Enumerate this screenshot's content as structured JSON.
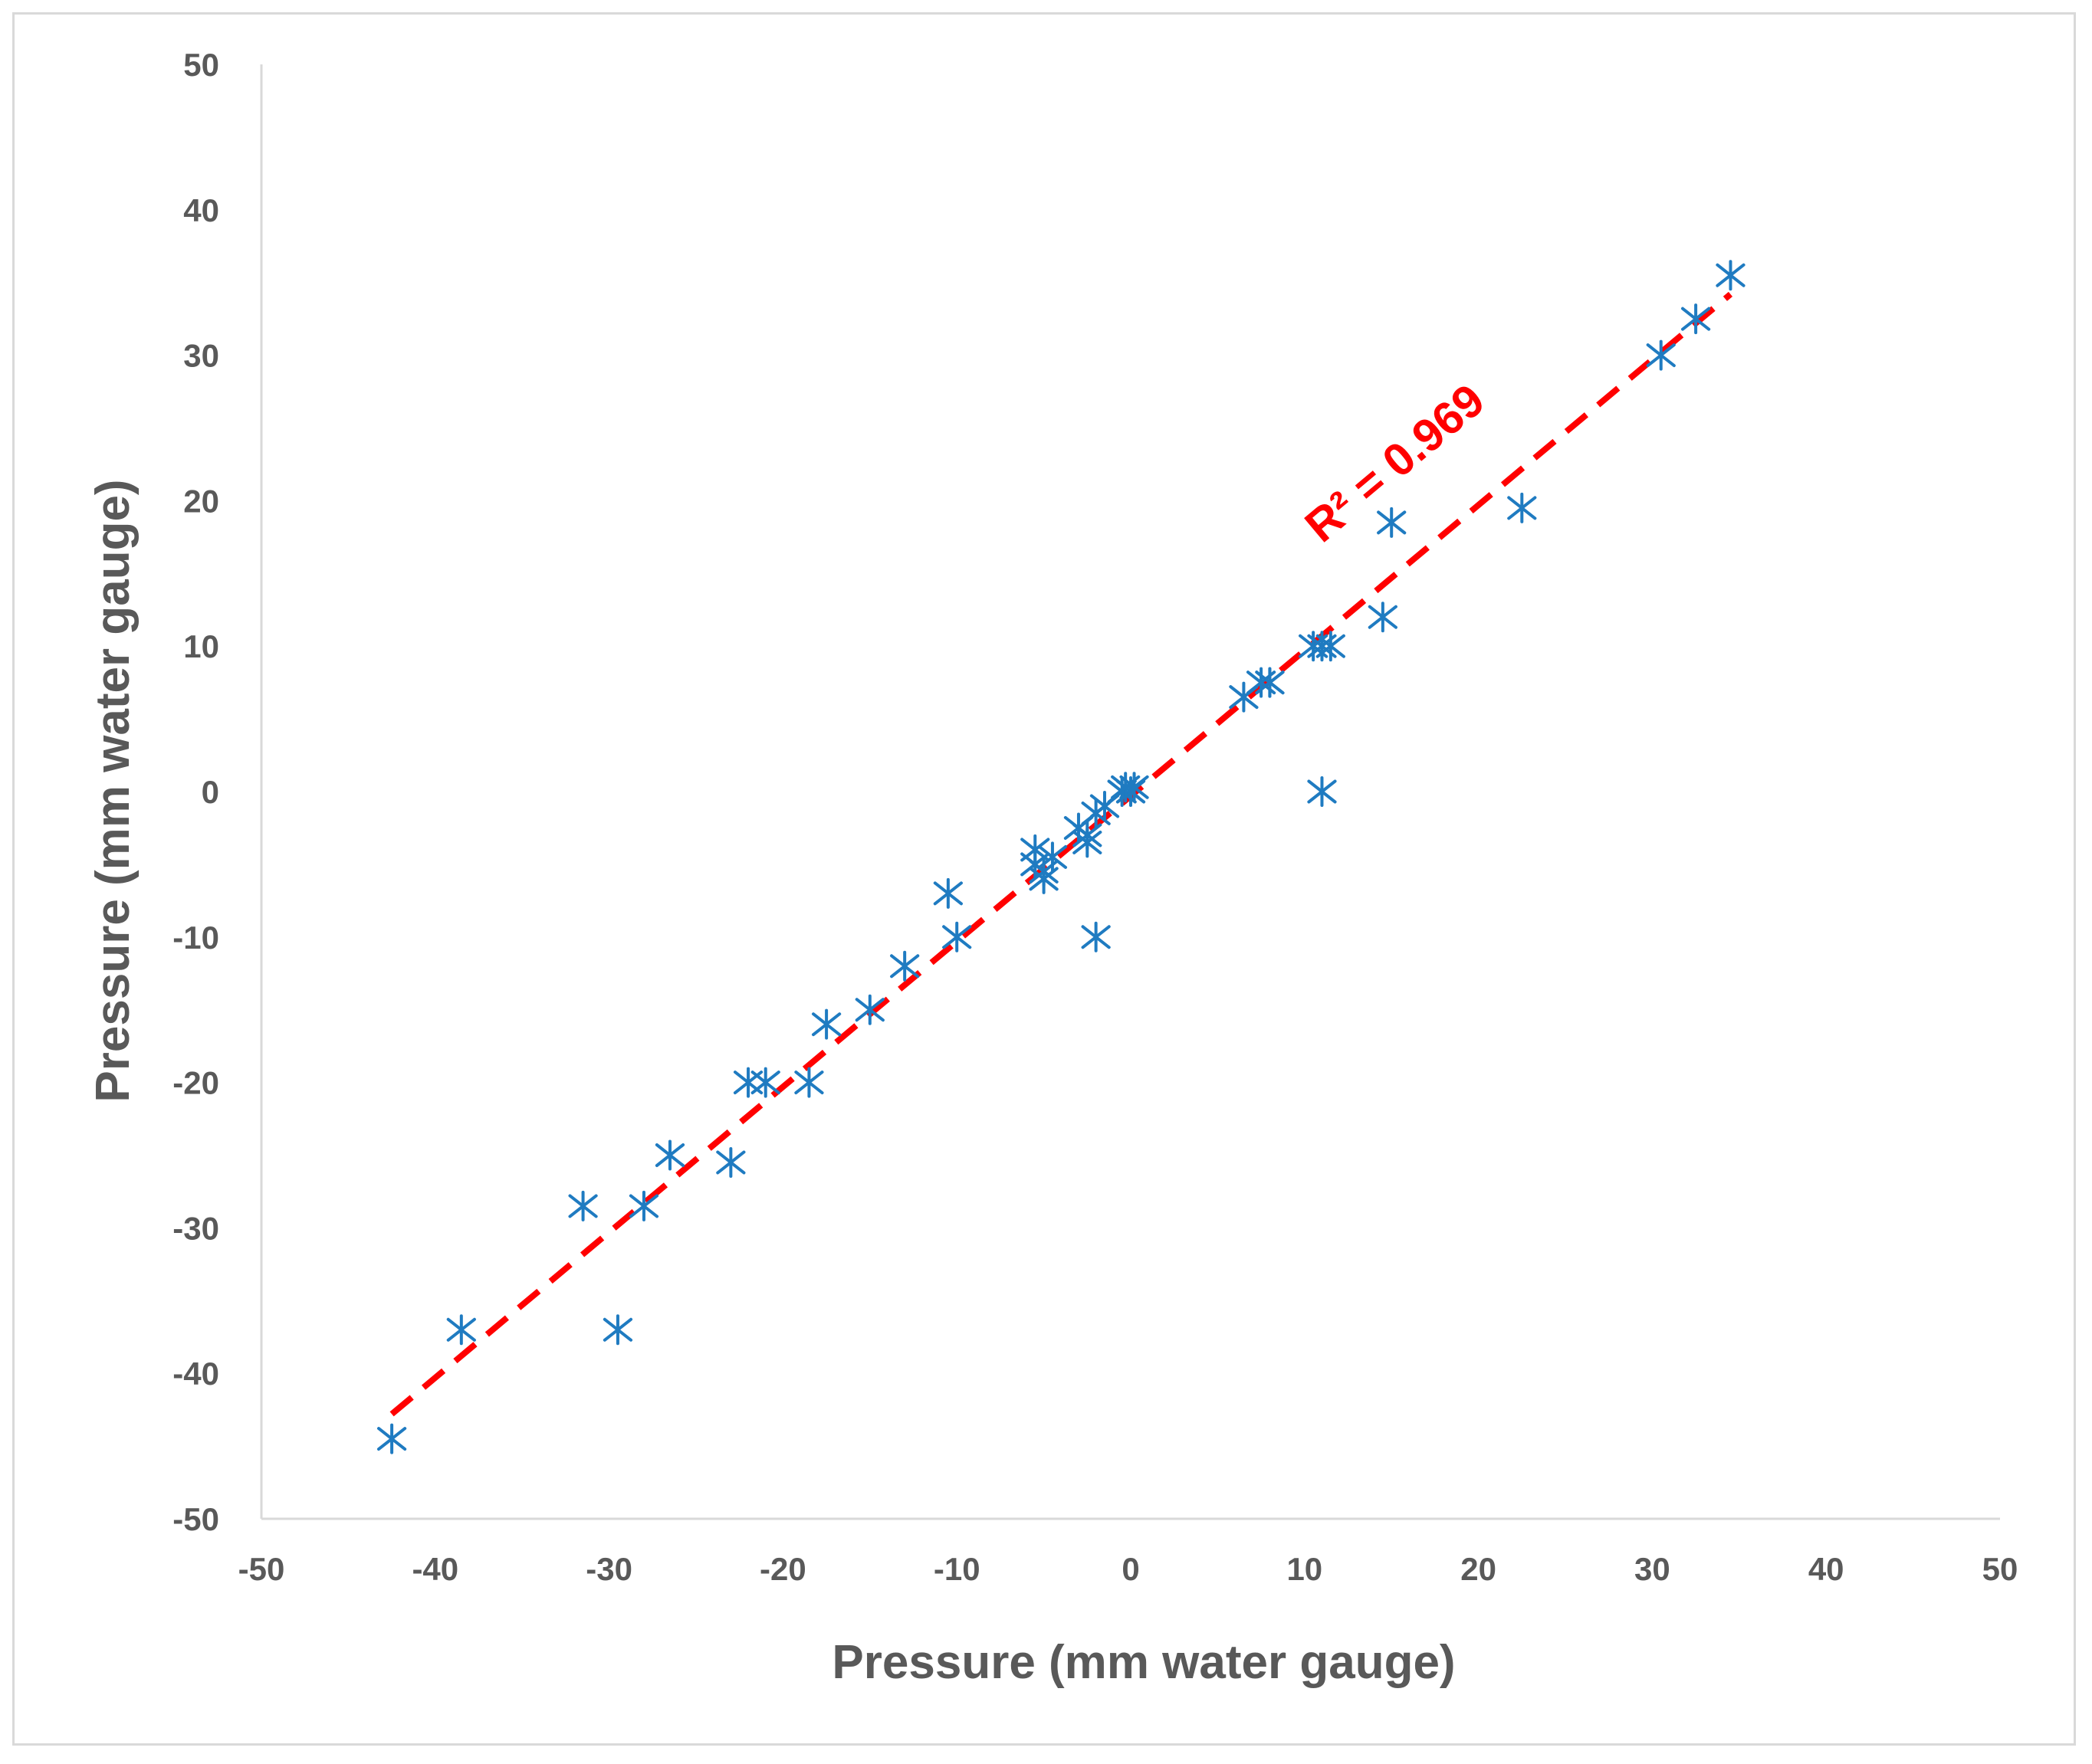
{
  "chart_data": {
    "type": "scatter",
    "title": "",
    "xlabel": "Pressure (mm water gauge)",
    "ylabel": "Pressure (mm water gauge)",
    "xlim": [
      -50,
      50
    ],
    "ylim": [
      -50,
      50
    ],
    "xticks": [
      -50,
      -40,
      -30,
      -20,
      -10,
      0,
      10,
      20,
      30,
      40,
      50
    ],
    "yticks": [
      -50,
      -40,
      -30,
      -20,
      -10,
      0,
      10,
      20,
      30,
      40,
      50
    ],
    "grid": false,
    "marker": "asterisk",
    "series": [
      {
        "name": "Pressure",
        "color": "#1f7bc1",
        "points": [
          [
            -42.5,
            -44.5
          ],
          [
            -38.5,
            -37
          ],
          [
            -31.5,
            -28.5
          ],
          [
            -28,
            -28.5
          ],
          [
            -29.5,
            -37
          ],
          [
            -26.5,
            -25
          ],
          [
            -23,
            -25.5
          ],
          [
            -22,
            -20
          ],
          [
            -21,
            -20
          ],
          [
            -18.5,
            -20
          ],
          [
            -17.5,
            -16
          ],
          [
            -15,
            -15
          ],
          [
            -13,
            -12
          ],
          [
            -10.5,
            -7
          ],
          [
            -10,
            -10
          ],
          [
            -5.5,
            -4
          ],
          [
            -5.5,
            -5
          ],
          [
            -5,
            -5.5
          ],
          [
            -4.5,
            -4.5
          ],
          [
            -5,
            -6
          ],
          [
            -3,
            -2.5
          ],
          [
            -2.5,
            -3
          ],
          [
            -2.5,
            -3.5
          ],
          [
            -2,
            -1.5
          ],
          [
            -2,
            -10
          ],
          [
            -1.5,
            -1
          ],
          [
            -0.5,
            0
          ],
          [
            0,
            0
          ],
          [
            0.2,
            0.3
          ],
          [
            -0.3,
            0.3
          ],
          [
            6.5,
            6.5
          ],
          [
            7.5,
            7.5
          ],
          [
            8,
            7.5
          ],
          [
            8,
            7.5
          ],
          [
            10.5,
            10
          ],
          [
            11,
            10
          ],
          [
            11.5,
            10
          ],
          [
            11,
            0
          ],
          [
            14.5,
            12
          ],
          [
            15,
            18.5
          ],
          [
            22.5,
            19.5
          ],
          [
            30.5,
            30
          ],
          [
            32.5,
            32.5
          ],
          [
            34.5,
            35.5
          ]
        ]
      }
    ],
    "trendline": {
      "type": "linear",
      "color": "#ff0000",
      "style": "dashed",
      "x_range": [
        -42.5,
        34.5
      ],
      "slope": 1.0,
      "intercept": -0.3,
      "label": "R² = 0.969"
    }
  }
}
